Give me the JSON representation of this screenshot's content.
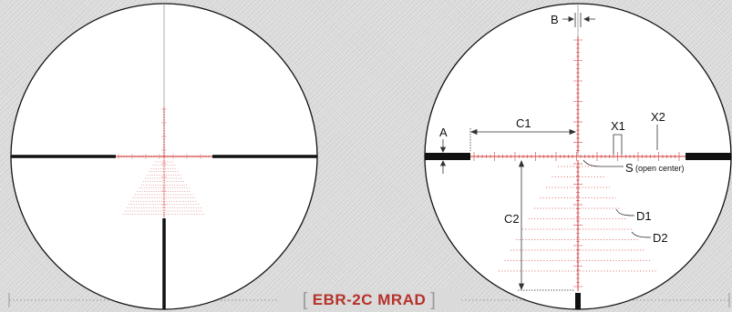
{
  "caption": {
    "open_bracket": "[",
    "title": "EBR-2C MRAD",
    "close_bracket": "]"
  },
  "labels": {
    "A": "A",
    "B": "B",
    "C1": "C1",
    "C2": "C2",
    "X1": "X1",
    "X2": "X2",
    "S": "S",
    "S_note": "(open center)",
    "D1": "D1",
    "D2": "D2"
  },
  "colors": {
    "reticle_red": "#d23a3a",
    "post_black": "#111111",
    "caption_red": "#b5322b"
  }
}
